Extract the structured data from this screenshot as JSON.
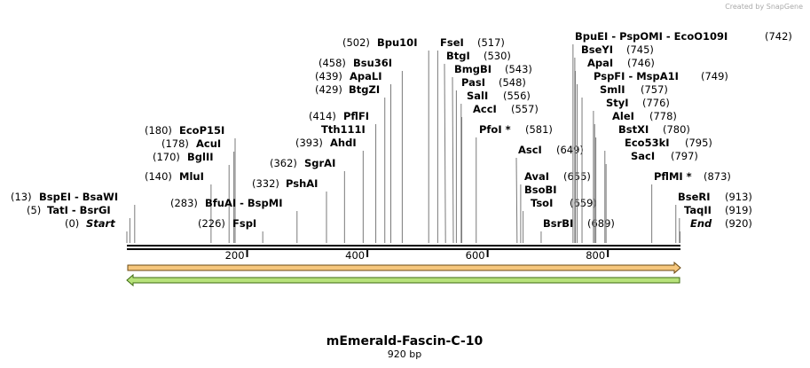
{
  "watermark": "Created by SnapGene",
  "title": "mEmerald-Fascin-C-10",
  "length_label": "920 bp",
  "length": 920,
  "ruler_ticks": [
    200,
    400,
    600,
    800
  ],
  "sites": [
    {
      "name": "BspEI - BsaWI",
      "position": 13,
      "position_label": "(13)"
    },
    {
      "name": "TatI - BsrGI",
      "position": 5,
      "position_label": "(5)"
    },
    {
      "name": "Start",
      "position": 0,
      "position_label": "(0)"
    },
    {
      "name": "MluI",
      "position": 140,
      "position_label": "(140)"
    },
    {
      "name": "BglII",
      "position": 170,
      "position_label": "(170)"
    },
    {
      "name": "AcuI",
      "position": 178,
      "position_label": "(178)"
    },
    {
      "name": "EcoP15I",
      "position": 180,
      "position_label": "(180)"
    },
    {
      "name": "BfuAI - BspMI",
      "position": 283,
      "position_label": "(283)"
    },
    {
      "name": "FspI",
      "position": 226,
      "position_label": "(226)"
    },
    {
      "name": "PshAI",
      "position": 332,
      "position_label": "(332)"
    },
    {
      "name": "SgrAI",
      "position": 362,
      "position_label": "(362)"
    },
    {
      "name": "AhdI",
      "position": 393,
      "position_label": "(393)"
    },
    {
      "name": "PflFI",
      "position": 414,
      "position_label": "(414)"
    },
    {
      "name": "Tth111I"
    },
    {
      "name": "BtgZI",
      "position": 429,
      "position_label": "(429)"
    },
    {
      "name": "ApaLI",
      "position": 439,
      "position_label": "(439)"
    },
    {
      "name": "Bsu36I",
      "position": 458,
      "position_label": "(458)"
    },
    {
      "name": "Bpu10I",
      "position": 502,
      "position_label": "(502)"
    },
    {
      "name": "FseI",
      "position": 517,
      "position_label": "(517)"
    },
    {
      "name": "BtgI",
      "position": 530,
      "position_label": "(530)"
    },
    {
      "name": "BmgBI",
      "position": 543,
      "position_label": "(543)"
    },
    {
      "name": "PasI",
      "position": 548,
      "position_label": "(548)"
    },
    {
      "name": "SalI",
      "position": 556,
      "position_label": "(556)"
    },
    {
      "name": "AccI",
      "position": 557,
      "position_label": "(557)"
    },
    {
      "name": "PfoI *",
      "position": 581,
      "position_label": "(581)"
    },
    {
      "name": "AscI",
      "position": 649,
      "position_label": "(649)"
    },
    {
      "name": "AvaI",
      "position": 655,
      "position_label": "(655)"
    },
    {
      "name": "BsoBI"
    },
    {
      "name": "TsoI",
      "position": 659,
      "position_label": "(659)"
    },
    {
      "name": "BsrBI",
      "position": 689,
      "position_label": "(689)"
    },
    {
      "name": "BpuEI - PspOMI - EcoO109I",
      "position": 742,
      "position_label": "(742)"
    },
    {
      "name": "BseYI",
      "position": 745,
      "position_label": "(745)"
    },
    {
      "name": "ApaI",
      "position": 746,
      "position_label": "(746)"
    },
    {
      "name": "PspFI - MspA1I",
      "position": 749,
      "position_label": "(749)"
    },
    {
      "name": "SmlI",
      "position": 757,
      "position_label": "(757)"
    },
    {
      "name": "StyI",
      "position": 776,
      "position_label": "(776)"
    },
    {
      "name": "AleI",
      "position": 778,
      "position_label": "(778)"
    },
    {
      "name": "BstXI",
      "position": 780,
      "position_label": "(780)"
    },
    {
      "name": "Eco53kI",
      "position": 795,
      "position_label": "(795)"
    },
    {
      "name": "SacI",
      "position": 797,
      "position_label": "(797)"
    },
    {
      "name": "PflMI *",
      "position": 873,
      "position_label": "(873)"
    },
    {
      "name": "BseRI",
      "position": 913,
      "position_label": "(913)"
    },
    {
      "name": "TaqII",
      "position": 919,
      "position_label": "(919)"
    },
    {
      "name": "End",
      "position": 920,
      "position_label": "(920)"
    }
  ]
}
